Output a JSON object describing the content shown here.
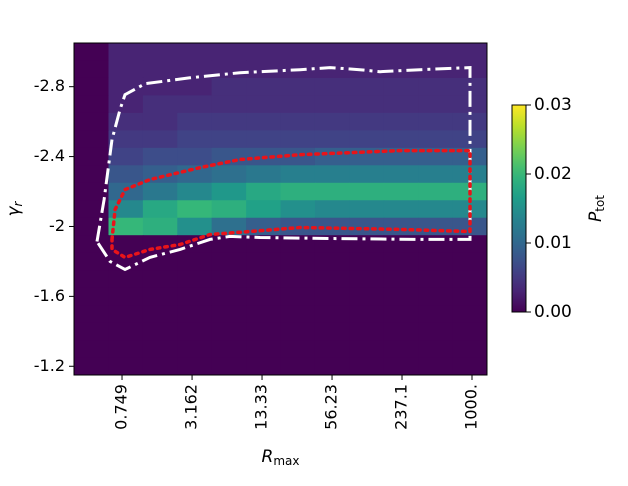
{
  "chart_data": {
    "type": "heatmap",
    "colormap": "viridis",
    "xscale": "log",
    "xlabel": {
      "main": "R",
      "sub": "max"
    },
    "ylabel": {
      "main": "γ",
      "sub": "r"
    },
    "clabel": {
      "main": "P",
      "sub": "tot"
    },
    "xlim": [
      0.279,
      1361
    ],
    "xticks": [
      0.749,
      3.162,
      13.33,
      56.23,
      237.1,
      {
        "value": 1000,
        "label": "1000."
      }
    ],
    "ylim": [
      -1.15,
      -3.05
    ],
    "yticks": [
      -2.8,
      -2.4,
      -2.0,
      -1.6,
      -1.2
    ],
    "clim": [
      0,
      0.03
    ],
    "cticks": [
      {
        "value": 0,
        "label": "0.00"
      },
      0.01,
      0.02,
      0.03
    ],
    "x_edges": [
      0.279,
      0.567,
      1.15,
      2.333,
      4.73,
      9.61,
      19.5,
      39.6,
      80.3,
      163,
      331,
      671,
      1361
    ],
    "y_edges": [
      -3.05,
      -2.95,
      -2.85,
      -2.75,
      -2.65,
      -2.55,
      -2.45,
      -2.35,
      -2.25,
      -2.15,
      -2.05,
      -1.95,
      -1.85,
      -1.75,
      -1.65,
      -1.55,
      -1.45,
      -1.35,
      -1.25,
      -1.15
    ],
    "z": [
      [
        0,
        0.003,
        0.003,
        0.003,
        0.003,
        0.003,
        0.003,
        0.003,
        0.003,
        0.003,
        0.003,
        0.003
      ],
      [
        0,
        0.003,
        0.003,
        0.003,
        0.003,
        0.003,
        0.003,
        0.003,
        0.003,
        0.003,
        0.003,
        0.003
      ],
      [
        0,
        0.003,
        0.003,
        0.003,
        0.004,
        0.004,
        0.004,
        0.004,
        0.004,
        0.004,
        0.004,
        0.004
      ],
      [
        0,
        0.003,
        0.004,
        0.004,
        0.004,
        0.004,
        0.004,
        0.004,
        0.004,
        0.004,
        0.004,
        0.004
      ],
      [
        0,
        0.004,
        0.004,
        0.005,
        0.005,
        0.005,
        0.005,
        0.005,
        0.005,
        0.005,
        0.005,
        0.005
      ],
      [
        0,
        0.005,
        0.005,
        0.006,
        0.006,
        0.006,
        0.006,
        0.006,
        0.006,
        0.006,
        0.006,
        0.006
      ],
      [
        0,
        0.006,
        0.007,
        0.007,
        0.008,
        0.008,
        0.008,
        0.009,
        0.009,
        0.009,
        0.009,
        0.009
      ],
      [
        0,
        0.008,
        0.009,
        0.01,
        0.011,
        0.012,
        0.013,
        0.013,
        0.013,
        0.013,
        0.013,
        0.013
      ],
      [
        0,
        0.01,
        0.012,
        0.014,
        0.016,
        0.018,
        0.019,
        0.019,
        0.019,
        0.019,
        0.019,
        0.019
      ],
      [
        0,
        0.014,
        0.018,
        0.02,
        0.019,
        0.017,
        0.015,
        0.014,
        0.014,
        0.014,
        0.014,
        0.014
      ],
      [
        0,
        0.02,
        0.019,
        0.015,
        0.011,
        0.009,
        0.008,
        0.008,
        0.008,
        0.008,
        0.008,
        0.008
      ],
      [
        0,
        0,
        0,
        0,
        0,
        0,
        0,
        0,
        0,
        0,
        0,
        0
      ],
      [
        0,
        0,
        0,
        0,
        0,
        0,
        0,
        0,
        0,
        0,
        0,
        0
      ],
      [
        0,
        0,
        0,
        0,
        0,
        0,
        0,
        0,
        0,
        0,
        0,
        0
      ],
      [
        0,
        0,
        0,
        0,
        0,
        0,
        0,
        0,
        0,
        0,
        0,
        0
      ],
      [
        0,
        0,
        0,
        0,
        0,
        0,
        0,
        0,
        0,
        0,
        0,
        0
      ],
      [
        0,
        0,
        0,
        0,
        0,
        0,
        0,
        0,
        0,
        0,
        0,
        0
      ],
      [
        0,
        0,
        0,
        0,
        0,
        0,
        0,
        0,
        0,
        0,
        0,
        0
      ],
      [
        0,
        0,
        0,
        0,
        0,
        0,
        0,
        0,
        0,
        0,
        0,
        0
      ]
    ],
    "contours": [
      {
        "color": "#ffffff",
        "style": "dashdot",
        "x": [
          0.448,
          0.518,
          0.61,
          0.719,
          0.797,
          1.202,
          3.03,
          8.47,
          29.1,
          53.9,
          99.6,
          150.7,
          343,
          960,
          960,
          343,
          53.9,
          12.8,
          6.9,
          4.57,
          2.47,
          1.33,
          0.797,
          0.585,
          0.448
        ],
        "y": [
          -1.914,
          -2.154,
          -2.497,
          -2.669,
          -2.754,
          -2.817,
          -2.851,
          -2.88,
          -2.897,
          -2.909,
          -2.897,
          -2.886,
          -2.897,
          -2.909,
          -1.926,
          -1.926,
          -1.931,
          -1.937,
          -1.943,
          -1.926,
          -1.869,
          -1.823,
          -1.754,
          -1.8,
          -1.914
        ]
      },
      {
        "color": "#e8141a",
        "style": "dotted",
        "x": [
          0.61,
          0.649,
          0.797,
          1.333,
          3.73,
          8.47,
          29.1,
          227,
          960,
          960,
          227,
          29.1,
          10.4,
          4.57,
          2.47,
          1.333,
          0.797,
          0.61,
          0.61
        ],
        "y": [
          -1.926,
          -2.097,
          -2.211,
          -2.269,
          -2.337,
          -2.383,
          -2.411,
          -2.434,
          -2.434,
          -1.971,
          -1.983,
          -1.994,
          -1.971,
          -1.954,
          -1.897,
          -1.869,
          -1.823,
          -1.869,
          -1.926
        ]
      }
    ]
  }
}
